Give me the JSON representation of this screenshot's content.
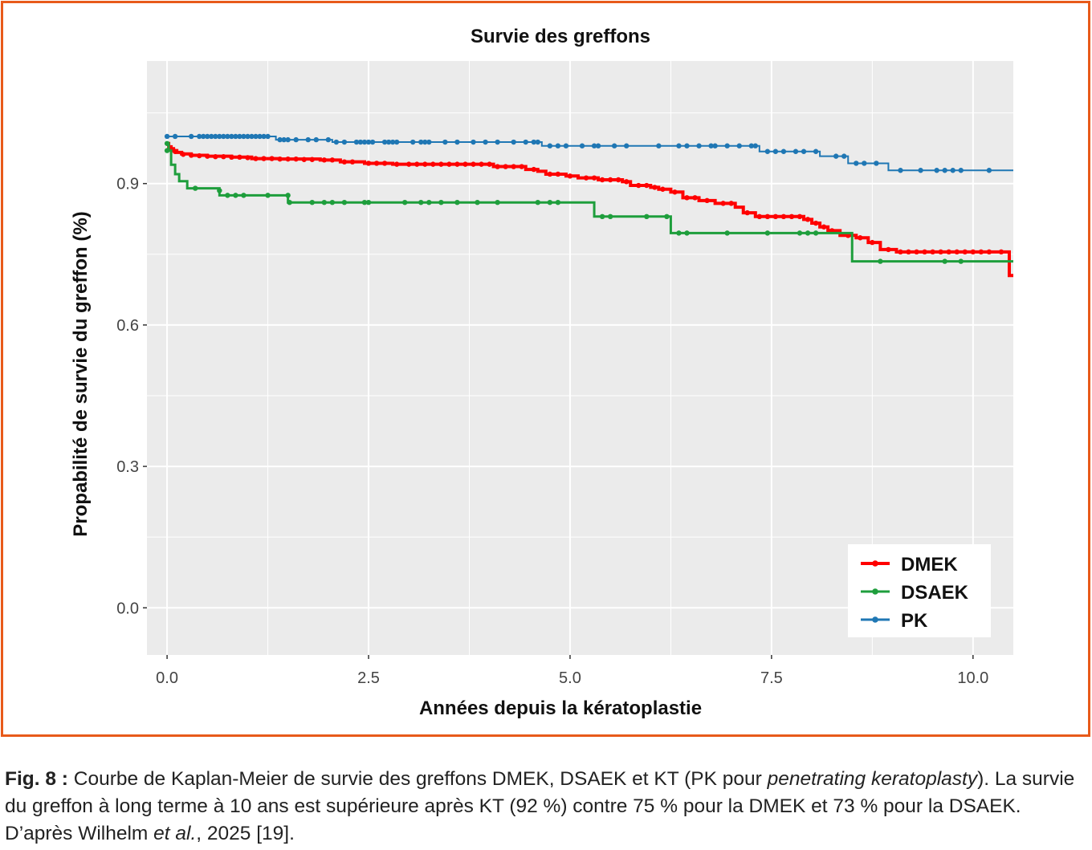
{
  "chart_data": {
    "type": "line",
    "subtype": "step (Kaplan-Meier)",
    "title": "Survie des greffons",
    "xlabel": "Années depuis la kératoplastie",
    "ylabel": "Propabilité de survie du greffon (%)",
    "xlim": [
      -0.25,
      10.5
    ],
    "ylim": [
      -0.1,
      1.16
    ],
    "x_ticks": [
      {
        "v": 0,
        "label": "0.0"
      },
      {
        "v": 2.5,
        "label": "2.5"
      },
      {
        "v": 5,
        "label": "5.0"
      },
      {
        "v": 7.5,
        "label": "7.5"
      },
      {
        "v": 10,
        "label": "10.0"
      }
    ],
    "y_ticks": [
      {
        "v": 0,
        "label": "0.0"
      },
      {
        "v": 0.3,
        "label": "0.3"
      },
      {
        "v": 0.6,
        "label": "0.6"
      },
      {
        "v": 0.9,
        "label": "0.9"
      }
    ],
    "grid": true,
    "legend_position": "bottom-right",
    "series": [
      {
        "name": "DMEK",
        "color": "#ff0000",
        "stroke_width": 4,
        "steps": [
          [
            0,
            0.985
          ],
          [
            0.02,
            0.978
          ],
          [
            0.05,
            0.974
          ],
          [
            0.08,
            0.97
          ],
          [
            0.12,
            0.966
          ],
          [
            0.18,
            0.963
          ],
          [
            0.3,
            0.96
          ],
          [
            0.5,
            0.958
          ],
          [
            0.8,
            0.956
          ],
          [
            1.05,
            0.953
          ],
          [
            1.4,
            0.952
          ],
          [
            1.9,
            0.95
          ],
          [
            2.15,
            0.946
          ],
          [
            2.45,
            0.943
          ],
          [
            2.8,
            0.941
          ],
          [
            4.05,
            0.936
          ],
          [
            4.45,
            0.93
          ],
          [
            4.6,
            0.926
          ],
          [
            4.7,
            0.92
          ],
          [
            4.95,
            0.916
          ],
          [
            5.1,
            0.912
          ],
          [
            5.35,
            0.908
          ],
          [
            5.65,
            0.904
          ],
          [
            5.75,
            0.896
          ],
          [
            6.0,
            0.892
          ],
          [
            6.1,
            0.888
          ],
          [
            6.25,
            0.882
          ],
          [
            6.4,
            0.87
          ],
          [
            6.6,
            0.864
          ],
          [
            6.8,
            0.858
          ],
          [
            7.05,
            0.85
          ],
          [
            7.15,
            0.838
          ],
          [
            7.3,
            0.83
          ],
          [
            7.9,
            0.824
          ],
          [
            8.0,
            0.816
          ],
          [
            8.1,
            0.808
          ],
          [
            8.2,
            0.8
          ],
          [
            8.35,
            0.79
          ],
          [
            8.55,
            0.785
          ],
          [
            8.7,
            0.775
          ],
          [
            8.85,
            0.76
          ],
          [
            9.05,
            0.755
          ],
          [
            10.45,
            0.705
          ],
          [
            10.5,
            0.705
          ]
        ],
        "censored": [
          [
            0.1,
            0.968
          ],
          [
            0.2,
            0.962
          ],
          [
            0.3,
            0.96
          ],
          [
            0.4,
            0.959
          ],
          [
            0.5,
            0.958
          ],
          [
            0.6,
            0.957
          ],
          [
            0.7,
            0.957
          ],
          [
            0.8,
            0.956
          ],
          [
            0.9,
            0.956
          ],
          [
            1.0,
            0.955
          ],
          [
            1.1,
            0.953
          ],
          [
            1.2,
            0.953
          ],
          [
            1.3,
            0.953
          ],
          [
            1.4,
            0.952
          ],
          [
            1.5,
            0.952
          ],
          [
            1.6,
            0.952
          ],
          [
            1.7,
            0.951
          ],
          [
            1.8,
            0.951
          ],
          [
            1.95,
            0.95
          ],
          [
            2.05,
            0.95
          ],
          [
            2.2,
            0.946
          ],
          [
            2.3,
            0.946
          ],
          [
            2.5,
            0.943
          ],
          [
            2.6,
            0.943
          ],
          [
            2.7,
            0.943
          ],
          [
            2.85,
            0.941
          ],
          [
            3.0,
            0.941
          ],
          [
            3.1,
            0.941
          ],
          [
            3.2,
            0.941
          ],
          [
            3.3,
            0.941
          ],
          [
            3.4,
            0.941
          ],
          [
            3.5,
            0.941
          ],
          [
            3.6,
            0.941
          ],
          [
            3.7,
            0.941
          ],
          [
            3.8,
            0.941
          ],
          [
            3.9,
            0.941
          ],
          [
            4.0,
            0.941
          ],
          [
            4.1,
            0.936
          ],
          [
            4.2,
            0.936
          ],
          [
            4.3,
            0.936
          ],
          [
            4.4,
            0.936
          ],
          [
            4.55,
            0.93
          ],
          [
            4.75,
            0.92
          ],
          [
            4.85,
            0.92
          ],
          [
            5.0,
            0.916
          ],
          [
            5.2,
            0.912
          ],
          [
            5.3,
            0.912
          ],
          [
            5.4,
            0.908
          ],
          [
            5.5,
            0.908
          ],
          [
            5.6,
            0.908
          ],
          [
            5.7,
            0.904
          ],
          [
            5.85,
            0.896
          ],
          [
            5.95,
            0.896
          ],
          [
            6.05,
            0.892
          ],
          [
            6.15,
            0.888
          ],
          [
            6.3,
            0.882
          ],
          [
            6.45,
            0.87
          ],
          [
            6.55,
            0.87
          ],
          [
            6.7,
            0.864
          ],
          [
            6.9,
            0.858
          ],
          [
            7.0,
            0.858
          ],
          [
            7.2,
            0.838
          ],
          [
            7.35,
            0.83
          ],
          [
            7.45,
            0.83
          ],
          [
            7.55,
            0.83
          ],
          [
            7.65,
            0.83
          ],
          [
            7.75,
            0.83
          ],
          [
            7.85,
            0.83
          ],
          [
            7.95,
            0.824
          ],
          [
            8.05,
            0.816
          ],
          [
            8.15,
            0.808
          ],
          [
            8.25,
            0.8
          ],
          [
            8.45,
            0.79
          ],
          [
            8.6,
            0.785
          ],
          [
            8.75,
            0.775
          ],
          [
            8.95,
            0.76
          ],
          [
            9.1,
            0.755
          ],
          [
            9.2,
            0.755
          ],
          [
            9.3,
            0.755
          ],
          [
            9.4,
            0.755
          ],
          [
            9.5,
            0.755
          ],
          [
            9.6,
            0.755
          ],
          [
            9.7,
            0.755
          ],
          [
            9.8,
            0.755
          ],
          [
            9.9,
            0.755
          ],
          [
            10.0,
            0.755
          ],
          [
            10.1,
            0.755
          ],
          [
            10.2,
            0.755
          ],
          [
            10.35,
            0.755
          ]
        ]
      },
      {
        "name": "DSAEK",
        "color": "#1e9e3c",
        "stroke_width": 3,
        "steps": [
          [
            0,
            0.985
          ],
          [
            0.02,
            0.97
          ],
          [
            0.05,
            0.94
          ],
          [
            0.1,
            0.92
          ],
          [
            0.15,
            0.905
          ],
          [
            0.25,
            0.89
          ],
          [
            0.65,
            0.875
          ],
          [
            1.5,
            0.86
          ],
          [
            5.3,
            0.83
          ],
          [
            6.25,
            0.795
          ],
          [
            8.5,
            0.735
          ],
          [
            10.5,
            0.735
          ]
        ],
        "censored": [
          [
            0,
            0.985
          ],
          [
            0,
            0.97
          ],
          [
            0.35,
            0.89
          ],
          [
            0.65,
            0.885
          ],
          [
            0.75,
            0.875
          ],
          [
            0.85,
            0.875
          ],
          [
            0.95,
            0.875
          ],
          [
            1.25,
            0.875
          ],
          [
            1.5,
            0.875
          ],
          [
            1.52,
            0.86
          ],
          [
            1.8,
            0.86
          ],
          [
            1.95,
            0.86
          ],
          [
            2.05,
            0.86
          ],
          [
            2.2,
            0.86
          ],
          [
            2.45,
            0.86
          ],
          [
            2.5,
            0.86
          ],
          [
            2.95,
            0.86
          ],
          [
            3.15,
            0.86
          ],
          [
            3.25,
            0.86
          ],
          [
            3.4,
            0.86
          ],
          [
            3.6,
            0.86
          ],
          [
            3.85,
            0.86
          ],
          [
            4.1,
            0.86
          ],
          [
            4.6,
            0.86
          ],
          [
            4.75,
            0.86
          ],
          [
            4.85,
            0.86
          ],
          [
            5.4,
            0.83
          ],
          [
            5.5,
            0.83
          ],
          [
            5.95,
            0.83
          ],
          [
            6.2,
            0.83
          ],
          [
            6.35,
            0.795
          ],
          [
            6.45,
            0.795
          ],
          [
            6.95,
            0.795
          ],
          [
            7.45,
            0.795
          ],
          [
            7.85,
            0.795
          ],
          [
            7.95,
            0.795
          ],
          [
            8.05,
            0.795
          ],
          [
            8.85,
            0.735
          ],
          [
            9.65,
            0.735
          ],
          [
            9.85,
            0.735
          ]
        ]
      },
      {
        "name": "PK",
        "color": "#1f77b4",
        "stroke_width": 2,
        "steps": [
          [
            0,
            1.0
          ],
          [
            1.35,
            0.993
          ],
          [
            2.05,
            0.988
          ],
          [
            4.65,
            0.98
          ],
          [
            7.35,
            0.968
          ],
          [
            8.1,
            0.958
          ],
          [
            8.45,
            0.943
          ],
          [
            8.95,
            0.928
          ],
          [
            10.5,
            0.928
          ]
        ],
        "censored": [
          [
            0,
            1.0
          ],
          [
            0.1,
            1.0
          ],
          [
            0.3,
            1.0
          ],
          [
            0.4,
            1.0
          ],
          [
            0.45,
            1.0
          ],
          [
            0.5,
            1.0
          ],
          [
            0.55,
            1.0
          ],
          [
            0.6,
            1.0
          ],
          [
            0.65,
            1.0
          ],
          [
            0.7,
            1.0
          ],
          [
            0.75,
            1.0
          ],
          [
            0.8,
            1.0
          ],
          [
            0.85,
            1.0
          ],
          [
            0.9,
            1.0
          ],
          [
            0.95,
            1.0
          ],
          [
            1.0,
            1.0
          ],
          [
            1.05,
            1.0
          ],
          [
            1.1,
            1.0
          ],
          [
            1.15,
            1.0
          ],
          [
            1.2,
            1.0
          ],
          [
            1.25,
            1.0
          ],
          [
            1.4,
            0.993
          ],
          [
            1.45,
            0.993
          ],
          [
            1.5,
            0.993
          ],
          [
            1.6,
            0.993
          ],
          [
            1.75,
            0.993
          ],
          [
            1.85,
            0.993
          ],
          [
            2.0,
            0.993
          ],
          [
            2.1,
            0.988
          ],
          [
            2.2,
            0.988
          ],
          [
            2.35,
            0.988
          ],
          [
            2.4,
            0.988
          ],
          [
            2.45,
            0.988
          ],
          [
            2.5,
            0.988
          ],
          [
            2.55,
            0.988
          ],
          [
            2.7,
            0.988
          ],
          [
            2.75,
            0.988
          ],
          [
            2.8,
            0.988
          ],
          [
            2.85,
            0.988
          ],
          [
            3.05,
            0.988
          ],
          [
            3.15,
            0.988
          ],
          [
            3.2,
            0.988
          ],
          [
            3.25,
            0.988
          ],
          [
            3.45,
            0.988
          ],
          [
            3.6,
            0.988
          ],
          [
            3.8,
            0.988
          ],
          [
            3.95,
            0.988
          ],
          [
            4.1,
            0.988
          ],
          [
            4.3,
            0.988
          ],
          [
            4.45,
            0.988
          ],
          [
            4.55,
            0.988
          ],
          [
            4.6,
            0.988
          ],
          [
            4.75,
            0.98
          ],
          [
            4.85,
            0.98
          ],
          [
            4.95,
            0.98
          ],
          [
            5.15,
            0.98
          ],
          [
            5.3,
            0.98
          ],
          [
            5.35,
            0.98
          ],
          [
            5.55,
            0.98
          ],
          [
            5.7,
            0.98
          ],
          [
            6.1,
            0.98
          ],
          [
            6.35,
            0.98
          ],
          [
            6.45,
            0.98
          ],
          [
            6.6,
            0.98
          ],
          [
            6.75,
            0.98
          ],
          [
            6.8,
            0.98
          ],
          [
            6.95,
            0.98
          ],
          [
            7.1,
            0.98
          ],
          [
            7.25,
            0.98
          ],
          [
            7.3,
            0.98
          ],
          [
            7.45,
            0.968
          ],
          [
            7.55,
            0.968
          ],
          [
            7.65,
            0.968
          ],
          [
            7.8,
            0.968
          ],
          [
            7.9,
            0.968
          ],
          [
            8.05,
            0.968
          ],
          [
            8.3,
            0.958
          ],
          [
            8.4,
            0.958
          ],
          [
            8.55,
            0.943
          ],
          [
            8.65,
            0.943
          ],
          [
            8.8,
            0.943
          ],
          [
            9.1,
            0.928
          ],
          [
            9.35,
            0.928
          ],
          [
            9.55,
            0.928
          ],
          [
            9.65,
            0.928
          ],
          [
            9.75,
            0.928
          ],
          [
            9.85,
            0.928
          ],
          [
            10.2,
            0.928
          ]
        ]
      }
    ]
  },
  "caption": {
    "fig_label": "Fig. 8 :",
    "text_1": " Courbe de Kaplan-Meier de survie des greffons DMEK, DSAEK et KT (PK pour ",
    "text_italic_1": "penetrating keratoplasty",
    "text_2": "). La survie du greffon à long terme à 10 ans est supérieure après KT (92 %) contre 75 % pour la DMEK et 73 % pour la DSAEK. D’après Wilhelm ",
    "text_italic_2": "et al.",
    "text_3": ", 2025 [19]."
  },
  "colors": {
    "frame_border": "#e85a1a",
    "panel_background": "#ebebeb",
    "grid": "#ffffff"
  }
}
